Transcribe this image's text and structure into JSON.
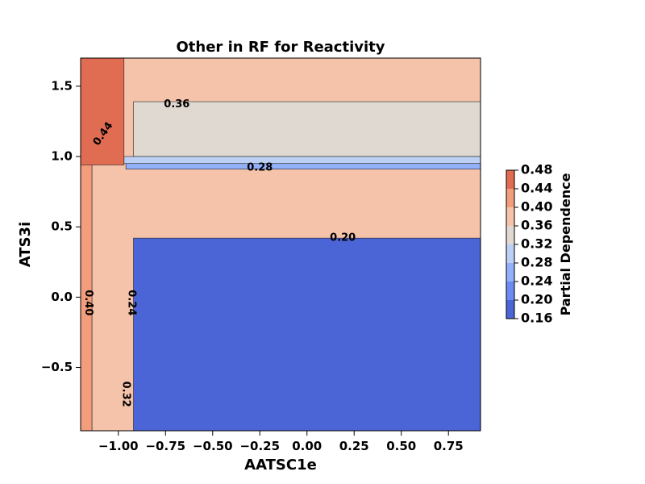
{
  "chart_data": {
    "type": "heatmap",
    "subtype": "filled-contour",
    "title": "Other in RF for Reactivity",
    "xlabel": "AATSC1e",
    "ylabel": "ATS3i",
    "xlim": [
      -1.2,
      0.92
    ],
    "ylim": [
      -0.95,
      1.7
    ],
    "x_ticks": [
      -1.0,
      -0.75,
      -0.5,
      -0.25,
      0.0,
      0.25,
      0.5,
      0.75
    ],
    "x_tick_labels": [
      "−1.00",
      "−0.75",
      "−0.50",
      "−0.25",
      "0.00",
      "0.25",
      "0.50",
      "0.75"
    ],
    "y_ticks": [
      -0.5,
      0.0,
      0.5,
      1.0,
      1.5
    ],
    "y_tick_labels": [
      "−0.5",
      "0.0",
      "0.5",
      "1.0",
      "1.5"
    ],
    "colormap": "coolwarm",
    "colorbar": {
      "label": "Partial Dependence",
      "levels": [
        0.16,
        0.2,
        0.24,
        0.28,
        0.32,
        0.36,
        0.4,
        0.44,
        0.48
      ],
      "tick_labels": [
        "0.16",
        "0.20",
        "0.24",
        "0.28",
        "0.32",
        "0.36",
        "0.40",
        "0.44",
        "0.48"
      ],
      "colors": [
        "#4b64d6",
        "#6b8af2",
        "#93b0fb",
        "#bcd0f6",
        "#e0d9d2",
        "#f5c3a9",
        "#f29d7b",
        "#e06c52",
        "#c63f3a"
      ]
    },
    "regions": [
      {
        "range": [
          0.16,
          0.2
        ],
        "x": [
          -0.92,
          0.92
        ],
        "y": [
          -0.95,
          0.42
        ]
      },
      {
        "range": [
          0.2,
          0.24
        ],
        "x": [
          -0.93,
          0.92
        ],
        "y": [
          0.42,
          0.91
        ]
      },
      {
        "range": [
          0.24,
          0.28
        ],
        "x": [
          -0.96,
          0.92
        ],
        "y": [
          0.91,
          0.95
        ]
      },
      {
        "range": [
          0.28,
          0.32
        ],
        "x": [
          -0.97,
          0.92
        ],
        "y": [
          0.95,
          1.0
        ]
      },
      {
        "range": [
          0.32,
          0.36
        ],
        "x": [
          -0.92,
          0.92
        ],
        "y": [
          1.0,
          1.39
        ]
      },
      {
        "range": [
          0.36,
          0.4
        ],
        "x": [
          -1.14,
          0.92
        ],
        "y": [
          -0.95,
          1.7
        ]
      },
      {
        "range": [
          0.4,
          0.44
        ],
        "x": [
          -1.2,
          -1.14
        ],
        "y": [
          -0.95,
          1.7
        ]
      },
      {
        "range": [
          0.44,
          0.48
        ],
        "x": [
          -1.2,
          -0.97
        ],
        "y": [
          0.94,
          1.7
        ]
      }
    ],
    "contour_labels": [
      {
        "text": "0.36",
        "x": -0.69,
        "y": 1.37
      },
      {
        "text": "0.28",
        "x": -0.25,
        "y": 0.92
      },
      {
        "text": "0.20",
        "x": 0.19,
        "y": 0.42
      },
      {
        "text": "0.44",
        "x": -1.08,
        "y": 1.16
      },
      {
        "text": "0.40",
        "x": -1.16,
        "y": -0.04
      },
      {
        "text": "0.24",
        "x": -0.93,
        "y": -0.04
      },
      {
        "text": "0.32",
        "x": -0.96,
        "y": -0.69
      }
    ]
  }
}
